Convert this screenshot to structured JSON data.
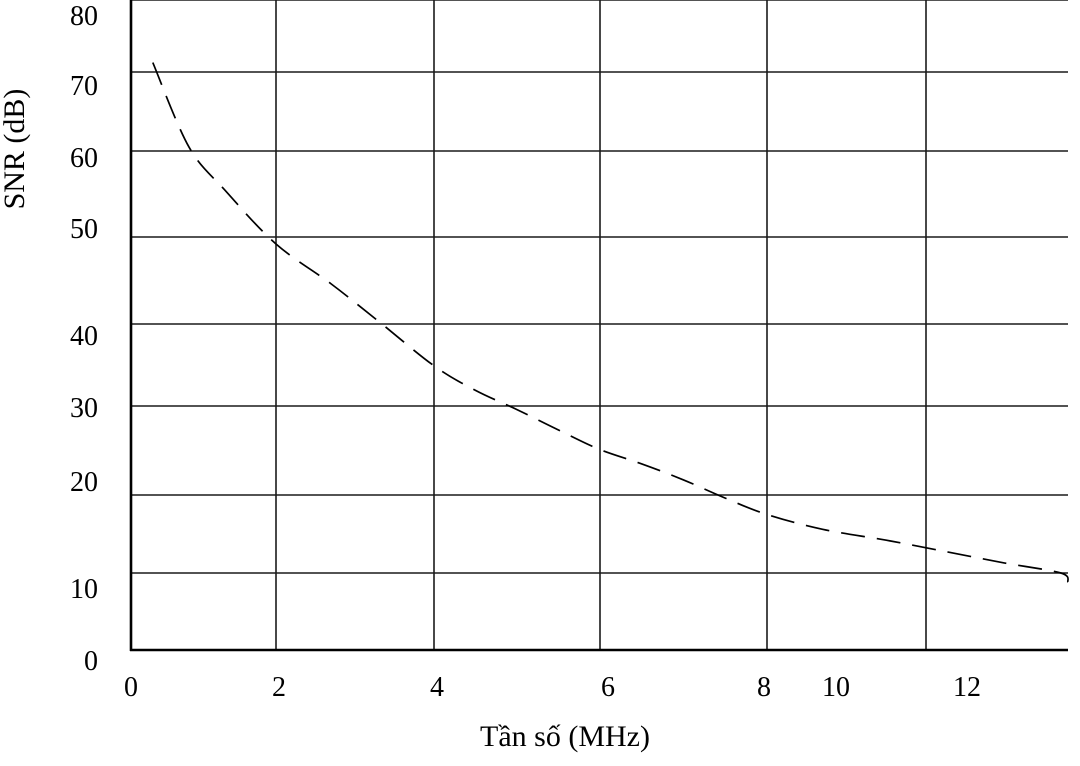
{
  "chart_data": {
    "type": "line",
    "title": "",
    "xlabel": "Tần số (MHz)",
    "ylabel": "SNR (dB)",
    "xlim": [
      0,
      13
    ],
    "ylim": [
      0,
      80
    ],
    "grid": true,
    "legend": "none",
    "x_ticks": [
      {
        "value": 0,
        "label": "0"
      },
      {
        "value": 2,
        "label": "2"
      },
      {
        "value": 4,
        "label": "4"
      },
      {
        "value": 6,
        "label": "6"
      },
      {
        "value": 8,
        "label": "8"
      },
      {
        "value": 10,
        "label": "10"
      },
      {
        "value": 12,
        "label": "12"
      }
    ],
    "y_ticks": [
      {
        "value": 0,
        "label": "0"
      },
      {
        "value": 10,
        "label": "10"
      },
      {
        "value": 20,
        "label": "20"
      },
      {
        "value": 30,
        "label": "30"
      },
      {
        "value": 40,
        "label": "40"
      },
      {
        "value": 50,
        "label": "50"
      },
      {
        "value": 60,
        "label": "60"
      },
      {
        "value": 70,
        "label": "70"
      },
      {
        "value": 80,
        "label": "80"
      }
    ],
    "series": [
      {
        "line_style": "dashed",
        "color": "#000000",
        "points": [
          {
            "x": 0.3,
            "y": 71.3
          },
          {
            "x": 0.8,
            "y": 60.5
          },
          {
            "x": 1.3,
            "y": 55.4
          },
          {
            "x": 2.0,
            "y": 49.2
          },
          {
            "x": 2.7,
            "y": 44.6
          },
          {
            "x": 3.3,
            "y": 40.3
          },
          {
            "x": 4.0,
            "y": 34.9
          },
          {
            "x": 4.5,
            "y": 31.9
          },
          {
            "x": 5.0,
            "y": 29.6
          },
          {
            "x": 5.5,
            "y": 27.3
          },
          {
            "x": 6.0,
            "y": 25.1
          },
          {
            "x": 6.5,
            "y": 23.5
          },
          {
            "x": 7.0,
            "y": 21.7
          },
          {
            "x": 7.5,
            "y": 19.6
          },
          {
            "x": 8.0,
            "y": 17.5
          },
          {
            "x": 8.7,
            "y": 15.6
          },
          {
            "x": 9.5,
            "y": 14.2
          },
          {
            "x": 10.3,
            "y": 12.7
          },
          {
            "x": 11.1,
            "y": 11.3
          },
          {
            "x": 11.9,
            "y": 10.0
          },
          {
            "x": 12.7,
            "y": 8.8
          }
        ]
      }
    ]
  }
}
